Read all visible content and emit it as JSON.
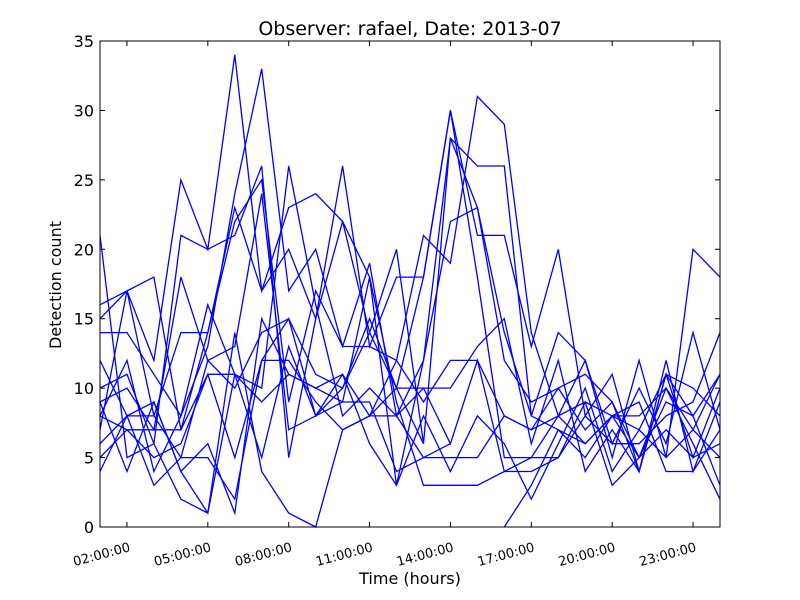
{
  "chart_data": {
    "type": "line",
    "title": "Observer: rafael, Date: 2013-07",
    "xlabel": "Time (hours)",
    "ylabel": "Detection count",
    "x_unit": "hour of day",
    "xlim": [
      1,
      24
    ],
    "ylim": [
      0,
      35
    ],
    "yticks": [
      0,
      5,
      10,
      15,
      20,
      25,
      30,
      35
    ],
    "yticklabels": [
      "0",
      "5",
      "10",
      "15",
      "20",
      "25",
      "30",
      "35"
    ],
    "xticks": [
      2,
      5,
      8,
      11,
      14,
      17,
      20,
      23
    ],
    "xticklabels": [
      "02:00:00",
      "05:00:00",
      "08:00:00",
      "11:00:00",
      "14:00:00",
      "17:00:00",
      "20:00:00",
      "23:00:00"
    ],
    "grid": false,
    "line_color": "#0000ff",
    "x": [
      1,
      2,
      3,
      4,
      5,
      6,
      7,
      8,
      9,
      10,
      11,
      12,
      13,
      14,
      15,
      16,
      17,
      18,
      19,
      20,
      21,
      22,
      23,
      24
    ],
    "series": [
      {
        "values": [
          16,
          17,
          12,
          25,
          20,
          34,
          17,
          20,
          15,
          26,
          13,
          18,
          18,
          30,
          21,
          21,
          13,
          20,
          8,
          11,
          4,
          11,
          5,
          10
        ]
      },
      {
        "values": [
          15,
          17,
          18,
          7,
          14,
          23,
          17,
          23,
          24,
          22,
          14,
          20,
          6,
          28,
          26,
          26,
          8,
          14,
          12,
          5,
          12,
          5,
          20,
          18
        ]
      },
      {
        "values": [
          14,
          14,
          11,
          8,
          13,
          24,
          33,
          17,
          20,
          13,
          13,
          12,
          21,
          19,
          31,
          29,
          14,
          8,
          12,
          6,
          10,
          6,
          14,
          7
        ]
      },
      {
        "values": [
          12,
          8,
          8,
          14,
          14,
          22,
          25,
          9,
          17,
          13,
          19,
          8,
          12,
          28,
          23,
          12,
          9,
          10,
          7,
          9,
          4,
          11,
          10,
          8
        ]
      },
      {
        "values": [
          10,
          11,
          6,
          21,
          20,
          21,
          26,
          5,
          15,
          22,
          18,
          3,
          12,
          22,
          23,
          14,
          8,
          7,
          6,
          8,
          8,
          10,
          7,
          11
        ]
      },
      {
        "values": [
          9,
          10,
          7,
          18,
          12,
          13,
          24,
          7,
          8,
          10,
          14,
          10,
          18,
          30,
          18,
          5,
          5,
          5,
          8,
          6,
          6,
          8,
          9,
          14
        ]
      },
      {
        "values": [
          8,
          12,
          4,
          8,
          16,
          11,
          10,
          26,
          16,
          8,
          10,
          8,
          10,
          10,
          13,
          15,
          6,
          12,
          4,
          7,
          4,
          12,
          4,
          9
        ]
      },
      {
        "values": [
          7,
          17,
          8,
          5,
          12,
          10,
          14,
          15,
          11,
          10,
          15,
          10,
          10,
          6,
          12,
          4,
          5,
          8,
          9,
          8,
          7,
          11,
          8,
          11
        ]
      },
      {
        "values": [
          6,
          8,
          9,
          4,
          6,
          1,
          15,
          11,
          10,
          11,
          8,
          12,
          9,
          12,
          12,
          8,
          7,
          10,
          11,
          9,
          5,
          9,
          8,
          3
        ]
      },
      {
        "values": [
          5,
          7,
          5,
          6,
          11,
          5,
          12,
          12,
          9,
          7,
          8,
          8,
          5,
          5,
          5,
          8,
          7,
          8,
          6,
          8,
          5,
          7,
          5,
          6
        ]
      },
      {
        "values": [
          4,
          8,
          3,
          5,
          5,
          2,
          12,
          15,
          8,
          11,
          6,
          3,
          8,
          4,
          8,
          6,
          2,
          6,
          10,
          4,
          7,
          5,
          7,
          5
        ]
      },
      {
        "values": [
          21,
          5,
          6,
          2,
          1,
          11,
          5,
          13,
          8,
          9,
          18,
          9,
          3,
          3,
          3,
          4,
          4,
          5,
          9,
          3,
          5,
          10,
          6,
          2
        ]
      },
      {
        "values": [
          9,
          4,
          9,
          4,
          1,
          14,
          4,
          1,
          0,
          7,
          8,
          10,
          6,
          null,
          null,
          0,
          3,
          7,
          5,
          8,
          9,
          4,
          4,
          7
        ]
      },
      {
        "values": [
          8,
          7,
          7,
          7,
          11,
          11,
          9,
          11,
          10,
          9,
          9,
          4,
          5,
          6,
          null,
          null,
          null,
          null,
          null,
          null,
          null,
          null,
          null,
          null
        ]
      }
    ]
  }
}
